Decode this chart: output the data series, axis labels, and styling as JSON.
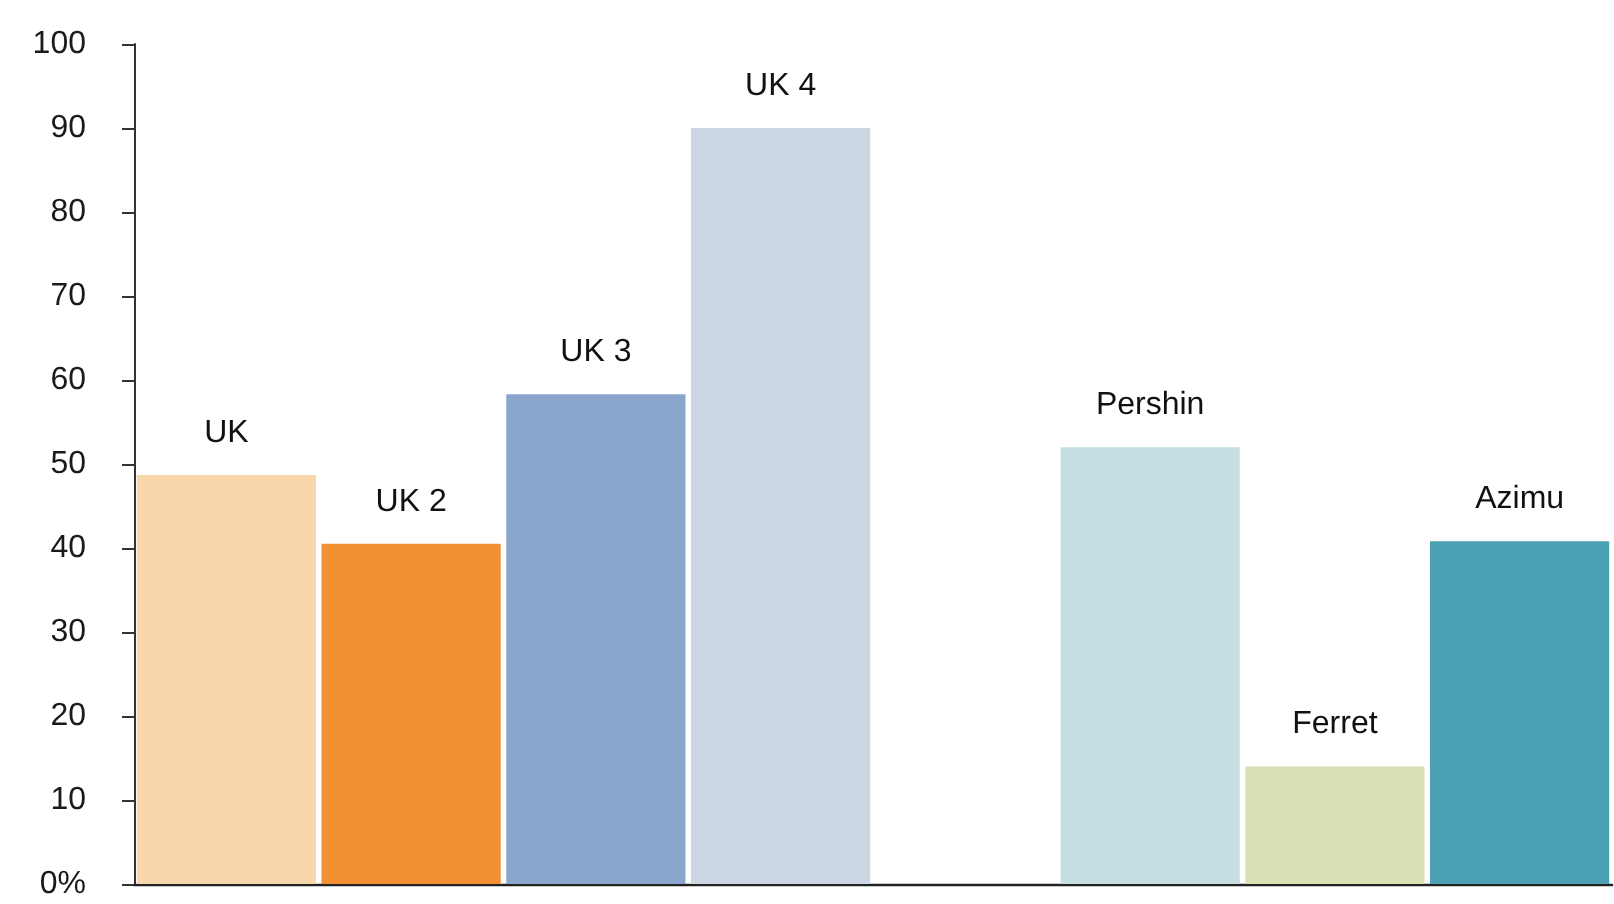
{
  "chart_data": {
    "type": "bar",
    "categories": [
      "UK",
      "UK 2",
      "UK 3",
      "UK 4",
      null,
      "Pershin",
      "Ferret",
      "Azimu"
    ],
    "values": [
      48.7,
      40.5,
      58.3,
      90,
      null,
      52,
      14,
      40.8
    ],
    "colors": [
      "#f8d7ad",
      "#f39033",
      "#8aa6cc",
      "#ccd7e3",
      null,
      "#c5dee2",
      "#d8e0b4",
      "#4ca0b3"
    ],
    "ylim": [
      0,
      100
    ],
    "yticks": [
      {
        "value": 0,
        "label": "0%"
      },
      10,
      20,
      30,
      40,
      50,
      60,
      70,
      80,
      90,
      100
    ],
    "tick_labels": "y"
  }
}
